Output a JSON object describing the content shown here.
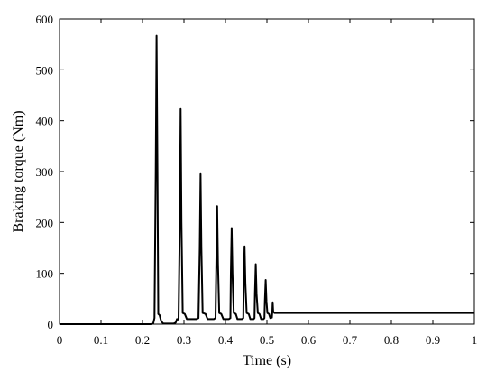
{
  "chart_data": {
    "type": "line",
    "xlabel": "Time (s)",
    "ylabel": "Braking torque (Nm)",
    "xlim": [
      0,
      1
    ],
    "ylim": [
      0,
      600
    ],
    "xticks": [
      0,
      0.1,
      0.2,
      0.3,
      0.4,
      0.5,
      0.6,
      0.7,
      0.8,
      0.9,
      1
    ],
    "yticks": [
      0,
      100,
      200,
      300,
      400,
      500,
      600
    ],
    "xtick_labels": [
      "0",
      "0.1",
      "0.2",
      "0.3",
      "0.4",
      "0.5",
      "0.6",
      "0.7",
      "0.8",
      "0.9",
      "1"
    ],
    "ytick_labels": [
      "0",
      "100",
      "200",
      "300",
      "400",
      "500",
      "600"
    ],
    "grid": false,
    "series": [
      {
        "color": "#000000",
        "points": [
          [
            0,
            0
          ],
          [
            0.22,
            0
          ],
          [
            0.226,
            2
          ],
          [
            0.229,
            12
          ],
          [
            0.232,
            300
          ],
          [
            0.234,
            567
          ],
          [
            0.236,
            300
          ],
          [
            0.238,
            20
          ],
          [
            0.241,
            18
          ],
          [
            0.245,
            6
          ],
          [
            0.25,
            1
          ],
          [
            0.275,
            1
          ],
          [
            0.28,
            3
          ],
          [
            0.283,
            10
          ],
          [
            0.287,
            9
          ],
          [
            0.29,
            200
          ],
          [
            0.292,
            423
          ],
          [
            0.294,
            200
          ],
          [
            0.297,
            22
          ],
          [
            0.302,
            20
          ],
          [
            0.307,
            10
          ],
          [
            0.33,
            10
          ],
          [
            0.335,
            12
          ],
          [
            0.338,
            150
          ],
          [
            0.34,
            295
          ],
          [
            0.342,
            150
          ],
          [
            0.345,
            22
          ],
          [
            0.352,
            20
          ],
          [
            0.357,
            10
          ],
          [
            0.372,
            10
          ],
          [
            0.376,
            12
          ],
          [
            0.378,
            120
          ],
          [
            0.38,
            232
          ],
          [
            0.382,
            120
          ],
          [
            0.385,
            22
          ],
          [
            0.39,
            20
          ],
          [
            0.395,
            10
          ],
          [
            0.408,
            10
          ],
          [
            0.412,
            12
          ],
          [
            0.413,
            100
          ],
          [
            0.415,
            189
          ],
          [
            0.417,
            100
          ],
          [
            0.42,
            22
          ],
          [
            0.425,
            20
          ],
          [
            0.429,
            10
          ],
          [
            0.44,
            10
          ],
          [
            0.443,
            12
          ],
          [
            0.444,
            80
          ],
          [
            0.446,
            153
          ],
          [
            0.448,
            80
          ],
          [
            0.451,
            22
          ],
          [
            0.456,
            20
          ],
          [
            0.46,
            10
          ],
          [
            0.468,
            10
          ],
          [
            0.47,
            12
          ],
          [
            0.471,
            60
          ],
          [
            0.473,
            118
          ],
          [
            0.475,
            60
          ],
          [
            0.478,
            22
          ],
          [
            0.482,
            20
          ],
          [
            0.486,
            10
          ],
          [
            0.492,
            10
          ],
          [
            0.494,
            12
          ],
          [
            0.495,
            45
          ],
          [
            0.497,
            87
          ],
          [
            0.499,
            45
          ],
          [
            0.501,
            22
          ],
          [
            0.505,
            20
          ],
          [
            0.508,
            12
          ],
          [
            0.512,
            13
          ],
          [
            0.513,
            25
          ],
          [
            0.514,
            43
          ],
          [
            0.515,
            25
          ],
          [
            0.518,
            22
          ],
          [
            0.55,
            22
          ],
          [
            1,
            22
          ]
        ]
      }
    ]
  }
}
